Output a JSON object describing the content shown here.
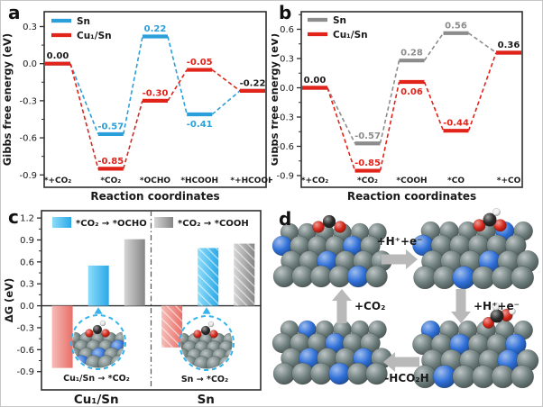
{
  "figure": {
    "panels": {
      "a": {
        "letter": "a"
      },
      "b": {
        "letter": "b"
      },
      "c": {
        "letter": "c"
      },
      "d": {
        "letter": "d"
      }
    }
  },
  "colors": {
    "blue": "#2b9fd9",
    "red": "#e2231a",
    "gray": "#8c8c8c",
    "cyan": "#35b3ec",
    "pink": "#ec837c",
    "black": "#1a1a1a",
    "axis": "#2e2e2e",
    "arrow_gray": "#b9b9b9"
  },
  "chart_data": [
    {
      "id": "a",
      "type": "line",
      "variant": "energy-level-diagram",
      "xlabel": "Reaction coordinates",
      "ylabel": "Gibbs free energy (eV)",
      "categories": [
        "*+CO₂",
        "*CO₂",
        "*OCHO",
        "*HCOOH",
        "*+HCOOH"
      ],
      "ylim": [
        -1.0,
        0.42
      ],
      "yticks": [
        "0.3",
        "0.0",
        "-0.3",
        "-0.6",
        "-0.9"
      ],
      "legend_position": "top-left",
      "series": [
        {
          "name": "Sn",
          "color_key": "blue",
          "values": [
            0.0,
            -0.57,
            0.22,
            -0.41,
            -0.22
          ],
          "point_labels": [
            "",
            "-0.57",
            "0.22",
            "-0.41",
            ""
          ],
          "label_side": [
            "above",
            "above",
            "above",
            "below",
            "above"
          ],
          "label_color_keys": [
            "",
            "blue",
            "blue",
            "blue",
            ""
          ]
        },
        {
          "name": "Cu₁/Sn",
          "color_key": "red",
          "values": [
            0.0,
            -0.85,
            -0.3,
            -0.05,
            -0.22
          ],
          "point_labels": [
            "0.00",
            "-0.85",
            "-0.30",
            "-0.05",
            "-0.22"
          ],
          "label_side": [
            "above",
            "above",
            "above",
            "above",
            "above"
          ],
          "label_color_keys": [
            "black",
            "red",
            "red",
            "red",
            "black"
          ]
        }
      ]
    },
    {
      "id": "b",
      "type": "line",
      "variant": "energy-level-diagram",
      "xlabel": "Reaction coordinates",
      "ylabel": "Gibbs free energy (eV)",
      "categories": [
        "*+CO₂",
        "*CO₂",
        "*COOH",
        "*CO",
        "*+CO"
      ],
      "ylim": [
        -1.02,
        0.78
      ],
      "yticks": [
        "0.6",
        "0.3",
        "0.0",
        "-0.3",
        "-0.6",
        "-0.9"
      ],
      "legend_position": "top-left",
      "series": [
        {
          "name": "Sn",
          "color_key": "gray",
          "values": [
            0.0,
            -0.57,
            0.28,
            0.56,
            0.36
          ],
          "point_labels": [
            "",
            "-0.57",
            "0.28",
            "0.56",
            ""
          ],
          "label_side": [
            "above",
            "above",
            "above",
            "above",
            "above"
          ],
          "label_color_keys": [
            "",
            "gray",
            "gray",
            "gray",
            ""
          ]
        },
        {
          "name": "Cu₁/Sn",
          "color_key": "red",
          "values": [
            0.0,
            -0.85,
            0.06,
            -0.44,
            0.36
          ],
          "point_labels": [
            "0.00",
            "-0.85",
            "0.06",
            "-0.44",
            "0.36"
          ],
          "label_side": [
            "above",
            "above",
            "below",
            "above",
            "above"
          ],
          "label_color_keys": [
            "black",
            "red",
            "red",
            "red",
            "black"
          ]
        }
      ]
    },
    {
      "id": "c",
      "type": "bar",
      "ylabel": "ΔG (eV)",
      "ylim": [
        -1.15,
        1.3
      ],
      "yticks": [
        "1.2",
        "0.9",
        "0.6",
        "0.3",
        "0.0",
        "-0.3",
        "-0.6",
        "-0.9"
      ],
      "legend": [
        {
          "label": "*CO₂ → *OCHO",
          "color_key": "cyan"
        },
        {
          "label": "*CO₂ → *COOH",
          "color_key": "gray"
        }
      ],
      "groups": [
        {
          "label": "Cu₁/Sn",
          "hatched": false,
          "inset_caption": "Cu₁/Sn → *CO₂",
          "bars": [
            {
              "name": "CO2-adsorption",
              "value": -0.85,
              "color_key": "pink"
            },
            {
              "name": "CO2-to-OCHO",
              "value": 0.55,
              "color_key": "cyan"
            },
            {
              "name": "CO2-to-COOH",
              "value": 0.91,
              "color_key": "gray"
            }
          ]
        },
        {
          "label": "Sn",
          "hatched": true,
          "inset_caption": "Sn → *CO₂",
          "bars": [
            {
              "name": "CO2-adsorption",
              "value": -0.57,
              "color_key": "pink"
            },
            {
              "name": "CO2-to-OCHO",
              "value": 0.79,
              "color_key": "cyan"
            },
            {
              "name": "CO2-to-COOH",
              "value": 0.85,
              "color_key": "gray"
            }
          ]
        }
      ]
    }
  ],
  "panel_d": {
    "atom_colors": {
      "Sn": "#6e7f7d",
      "Cu": "#2e6fd8",
      "O": "#d7281b",
      "C": "#161616",
      "H": "#f0f0f0"
    },
    "steps": [
      {
        "id": "co2-adsorbed",
        "position": "top-left",
        "adsorbate": "co2"
      },
      {
        "id": "ocho-adsorbed",
        "position": "top-right",
        "adsorbate": "ocho"
      },
      {
        "id": "hcooh-formed",
        "position": "bottom-right",
        "adsorbate": "hcooh"
      },
      {
        "id": "bare-surface",
        "position": "bottom-left",
        "adsorbate": "none"
      }
    ],
    "arrows": [
      {
        "label": "+H⁺+e⁻",
        "direction": "right"
      },
      {
        "label": "+H⁺+e⁻",
        "direction": "down"
      },
      {
        "label": "-HCO₂H",
        "direction": "left"
      },
      {
        "label": "+CO₂",
        "direction": "up"
      }
    ]
  }
}
